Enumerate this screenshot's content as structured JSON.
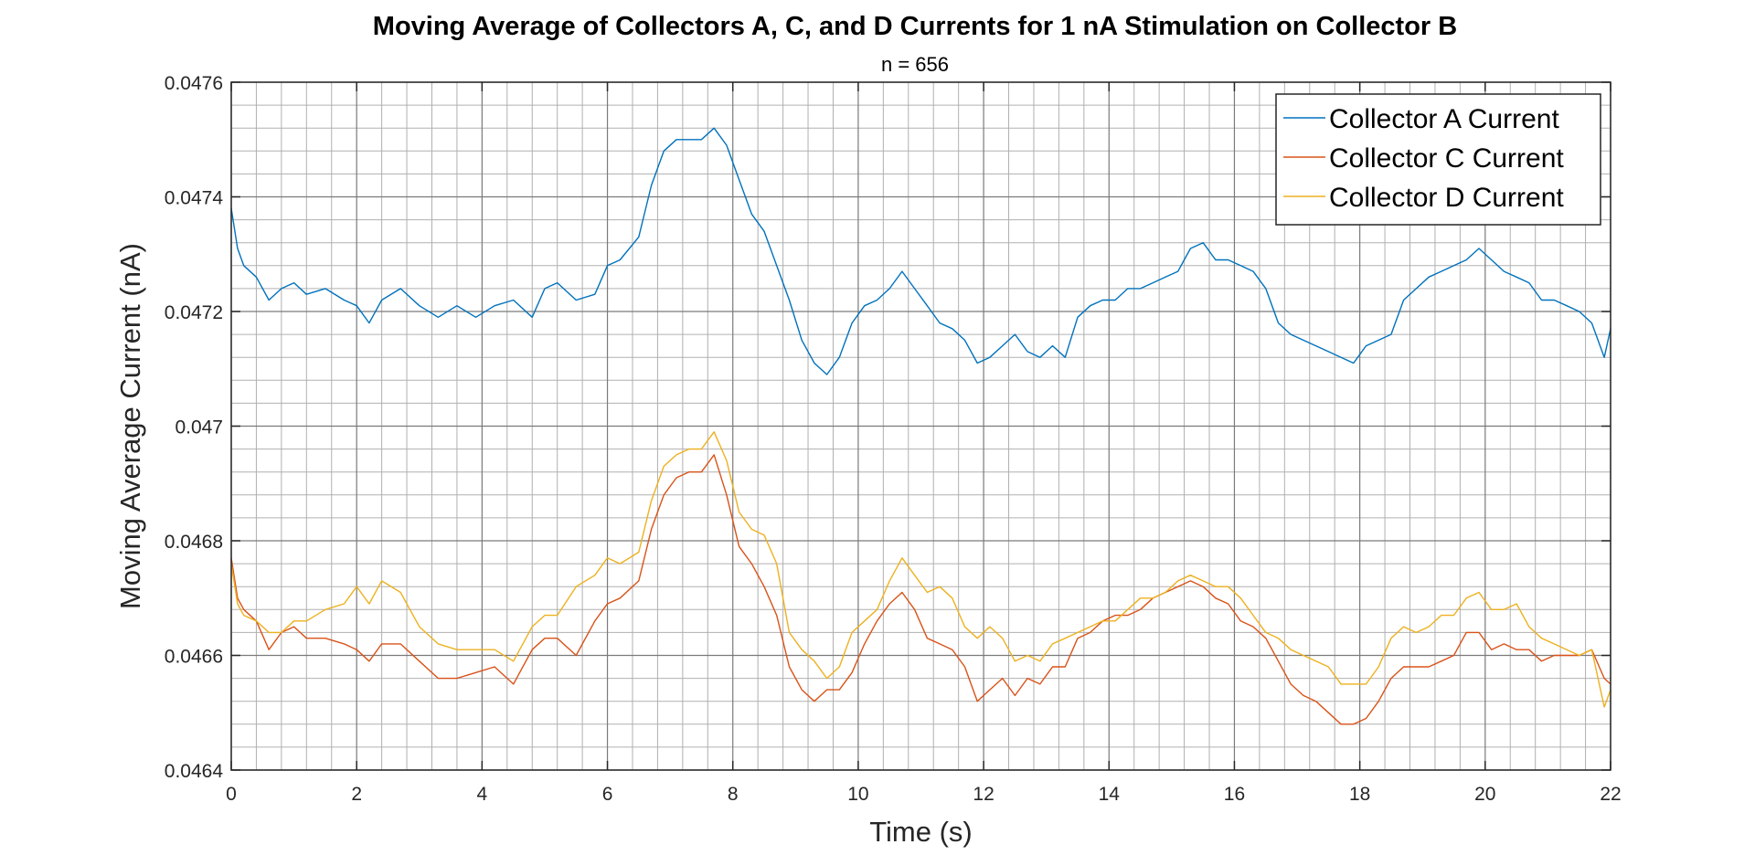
{
  "chart_data": {
    "type": "line",
    "title": "Moving Average of Collectors A, C, and D Currents for 1 nA Stimulation on Collector B",
    "subtitle": "n = 656",
    "xlabel": "Time (s)",
    "ylabel": "Moving Average Current (nA)",
    "xlim": [
      0,
      22
    ],
    "ylim": [
      0.0464,
      0.0476
    ],
    "xticks": [
      0,
      2,
      4,
      6,
      8,
      10,
      12,
      14,
      16,
      18,
      20,
      22
    ],
    "xtick_labels": [
      "0",
      "2",
      "4",
      "6",
      "8",
      "10",
      "12",
      "14",
      "16",
      "18",
      "20",
      "22"
    ],
    "yticks": [
      0.0464,
      0.0466,
      0.0468,
      0.047,
      0.0472,
      0.0474,
      0.0476
    ],
    "ytick_labels": [
      "0.0464",
      "0.0466",
      "0.0468",
      "0.047",
      "0.0472",
      "0.0474",
      "0.0476"
    ],
    "grid": true,
    "minor_grid": true,
    "legend_position": "top-right",
    "series": [
      {
        "name": "Collector A Current",
        "color": "#0072BD",
        "x": [
          0,
          0.1,
          0.2,
          0.4,
          0.6,
          0.8,
          1.0,
          1.2,
          1.5,
          1.8,
          2.0,
          2.2,
          2.4,
          2.7,
          3.0,
          3.3,
          3.6,
          3.9,
          4.2,
          4.5,
          4.8,
          5.0,
          5.2,
          5.5,
          5.8,
          6.0,
          6.2,
          6.5,
          6.7,
          6.9,
          7.1,
          7.3,
          7.5,
          7.7,
          7.9,
          8.1,
          8.3,
          8.5,
          8.7,
          8.9,
          9.1,
          9.3,
          9.5,
          9.7,
          9.9,
          10.1,
          10.3,
          10.5,
          10.7,
          10.9,
          11.1,
          11.3,
          11.5,
          11.7,
          11.9,
          12.1,
          12.3,
          12.5,
          12.7,
          12.9,
          13.1,
          13.3,
          13.5,
          13.7,
          13.9,
          14.1,
          14.3,
          14.5,
          14.7,
          14.9,
          15.1,
          15.3,
          15.5,
          15.7,
          15.9,
          16.1,
          16.3,
          16.5,
          16.7,
          16.9,
          17.1,
          17.3,
          17.5,
          17.7,
          17.9,
          18.1,
          18.3,
          18.5,
          18.7,
          18.9,
          19.1,
          19.3,
          19.5,
          19.7,
          19.9,
          20.1,
          20.3,
          20.5,
          20.7,
          20.9,
          21.1,
          21.3,
          21.5,
          21.7,
          21.9,
          22.0
        ],
        "y": [
          0.04738,
          0.04731,
          0.04728,
          0.04726,
          0.04722,
          0.04724,
          0.04725,
          0.04723,
          0.04724,
          0.04722,
          0.04721,
          0.04718,
          0.04722,
          0.04724,
          0.04721,
          0.04719,
          0.04721,
          0.04719,
          0.04721,
          0.04722,
          0.04719,
          0.04724,
          0.04725,
          0.04722,
          0.04723,
          0.04728,
          0.04729,
          0.04733,
          0.04742,
          0.04748,
          0.0475,
          0.0475,
          0.0475,
          0.04752,
          0.04749,
          0.04743,
          0.04737,
          0.04734,
          0.04728,
          0.04722,
          0.04715,
          0.04711,
          0.04709,
          0.04712,
          0.04718,
          0.04721,
          0.04722,
          0.04724,
          0.04727,
          0.04724,
          0.04721,
          0.04718,
          0.04717,
          0.04715,
          0.04711,
          0.04712,
          0.04714,
          0.04716,
          0.04713,
          0.04712,
          0.04714,
          0.04712,
          0.04719,
          0.04721,
          0.04722,
          0.04722,
          0.04724,
          0.04724,
          0.04725,
          0.04726,
          0.04727,
          0.04731,
          0.04732,
          0.04729,
          0.04729,
          0.04728,
          0.04727,
          0.04724,
          0.04718,
          0.04716,
          0.04715,
          0.04714,
          0.04713,
          0.04712,
          0.04711,
          0.04714,
          0.04715,
          0.04716,
          0.04722,
          0.04724,
          0.04726,
          0.04727,
          0.04728,
          0.04729,
          0.04731,
          0.04729,
          0.04727,
          0.04726,
          0.04725,
          0.04722,
          0.04722,
          0.04721,
          0.0472,
          0.04718,
          0.04712,
          0.04717
        ]
      },
      {
        "name": "Collector C Current",
        "color": "#D95319",
        "x": [
          0,
          0.1,
          0.2,
          0.4,
          0.6,
          0.8,
          1.0,
          1.2,
          1.5,
          1.8,
          2.0,
          2.2,
          2.4,
          2.7,
          3.0,
          3.3,
          3.6,
          3.9,
          4.2,
          4.5,
          4.8,
          5.0,
          5.2,
          5.5,
          5.8,
          6.0,
          6.2,
          6.5,
          6.7,
          6.9,
          7.1,
          7.3,
          7.5,
          7.7,
          7.9,
          8.1,
          8.3,
          8.5,
          8.7,
          8.9,
          9.1,
          9.3,
          9.5,
          9.7,
          9.9,
          10.1,
          10.3,
          10.5,
          10.7,
          10.9,
          11.1,
          11.3,
          11.5,
          11.7,
          11.9,
          12.1,
          12.3,
          12.5,
          12.7,
          12.9,
          13.1,
          13.3,
          13.5,
          13.7,
          13.9,
          14.1,
          14.3,
          14.5,
          14.7,
          14.9,
          15.1,
          15.3,
          15.5,
          15.7,
          15.9,
          16.1,
          16.3,
          16.5,
          16.7,
          16.9,
          17.1,
          17.3,
          17.5,
          17.7,
          17.9,
          18.1,
          18.3,
          18.5,
          18.7,
          18.9,
          19.1,
          19.3,
          19.5,
          19.7,
          19.9,
          20.1,
          20.3,
          20.5,
          20.7,
          20.9,
          21.1,
          21.3,
          21.5,
          21.7,
          21.9,
          22.0
        ],
        "y": [
          0.04677,
          0.0467,
          0.04668,
          0.04666,
          0.04661,
          0.04664,
          0.04665,
          0.04663,
          0.04663,
          0.04662,
          0.04661,
          0.04659,
          0.04662,
          0.04662,
          0.04659,
          0.04656,
          0.04656,
          0.04657,
          0.04658,
          0.04655,
          0.04661,
          0.04663,
          0.04663,
          0.0466,
          0.04666,
          0.04669,
          0.0467,
          0.04673,
          0.04682,
          0.04688,
          0.04691,
          0.04692,
          0.04692,
          0.04695,
          0.04688,
          0.04679,
          0.04676,
          0.04672,
          0.04667,
          0.04658,
          0.04654,
          0.04652,
          0.04654,
          0.04654,
          0.04657,
          0.04662,
          0.04666,
          0.04669,
          0.04671,
          0.04668,
          0.04663,
          0.04662,
          0.04661,
          0.04658,
          0.04652,
          0.04654,
          0.04656,
          0.04653,
          0.04656,
          0.04655,
          0.04658,
          0.04658,
          0.04663,
          0.04664,
          0.04666,
          0.04667,
          0.04667,
          0.04668,
          0.0467,
          0.04671,
          0.04672,
          0.04673,
          0.04672,
          0.0467,
          0.04669,
          0.04666,
          0.04665,
          0.04663,
          0.04659,
          0.04655,
          0.04653,
          0.04652,
          0.0465,
          0.04648,
          0.04648,
          0.04649,
          0.04652,
          0.04656,
          0.04658,
          0.04658,
          0.04658,
          0.04659,
          0.0466,
          0.04664,
          0.04664,
          0.04661,
          0.04662,
          0.04661,
          0.04661,
          0.04659,
          0.0466,
          0.0466,
          0.0466,
          0.04661,
          0.04656,
          0.04655
        ]
      },
      {
        "name": "Collector D Current",
        "color": "#EDB120",
        "x": [
          0,
          0.1,
          0.2,
          0.4,
          0.6,
          0.8,
          1.0,
          1.2,
          1.5,
          1.8,
          2.0,
          2.2,
          2.4,
          2.7,
          3.0,
          3.3,
          3.6,
          3.9,
          4.2,
          4.5,
          4.8,
          5.0,
          5.2,
          5.5,
          5.8,
          6.0,
          6.2,
          6.5,
          6.7,
          6.9,
          7.1,
          7.3,
          7.5,
          7.7,
          7.9,
          8.1,
          8.3,
          8.5,
          8.7,
          8.9,
          9.1,
          9.3,
          9.5,
          9.7,
          9.9,
          10.1,
          10.3,
          10.5,
          10.7,
          10.9,
          11.1,
          11.3,
          11.5,
          11.7,
          11.9,
          12.1,
          12.3,
          12.5,
          12.7,
          12.9,
          13.1,
          13.3,
          13.5,
          13.7,
          13.9,
          14.1,
          14.3,
          14.5,
          14.7,
          14.9,
          15.1,
          15.3,
          15.5,
          15.7,
          15.9,
          16.1,
          16.3,
          16.5,
          16.7,
          16.9,
          17.1,
          17.3,
          17.5,
          17.7,
          17.9,
          18.1,
          18.3,
          18.5,
          18.7,
          18.9,
          19.1,
          19.3,
          19.5,
          19.7,
          19.9,
          20.1,
          20.3,
          20.5,
          20.7,
          20.9,
          21.1,
          21.3,
          21.5,
          21.7,
          21.9,
          22.0
        ],
        "y": [
          0.04676,
          0.04669,
          0.04667,
          0.04666,
          0.04664,
          0.04664,
          0.04666,
          0.04666,
          0.04668,
          0.04669,
          0.04672,
          0.04669,
          0.04673,
          0.04671,
          0.04665,
          0.04662,
          0.04661,
          0.04661,
          0.04661,
          0.04659,
          0.04665,
          0.04667,
          0.04667,
          0.04672,
          0.04674,
          0.04677,
          0.04676,
          0.04678,
          0.04687,
          0.04693,
          0.04695,
          0.04696,
          0.04696,
          0.04699,
          0.04694,
          0.04685,
          0.04682,
          0.04681,
          0.04676,
          0.04664,
          0.04661,
          0.04659,
          0.04656,
          0.04658,
          0.04664,
          0.04666,
          0.04668,
          0.04673,
          0.04677,
          0.04674,
          0.04671,
          0.04672,
          0.0467,
          0.04665,
          0.04663,
          0.04665,
          0.04663,
          0.04659,
          0.0466,
          0.04659,
          0.04662,
          0.04663,
          0.04664,
          0.04665,
          0.04666,
          0.04666,
          0.04668,
          0.0467,
          0.0467,
          0.04671,
          0.04673,
          0.04674,
          0.04673,
          0.04672,
          0.04672,
          0.0467,
          0.04667,
          0.04664,
          0.04663,
          0.04661,
          0.0466,
          0.04659,
          0.04658,
          0.04655,
          0.04655,
          0.04655,
          0.04658,
          0.04663,
          0.04665,
          0.04664,
          0.04665,
          0.04667,
          0.04667,
          0.0467,
          0.04671,
          0.04668,
          0.04668,
          0.04669,
          0.04665,
          0.04663,
          0.04662,
          0.04661,
          0.0466,
          0.04661,
          0.04651,
          0.04654
        ]
      }
    ]
  }
}
